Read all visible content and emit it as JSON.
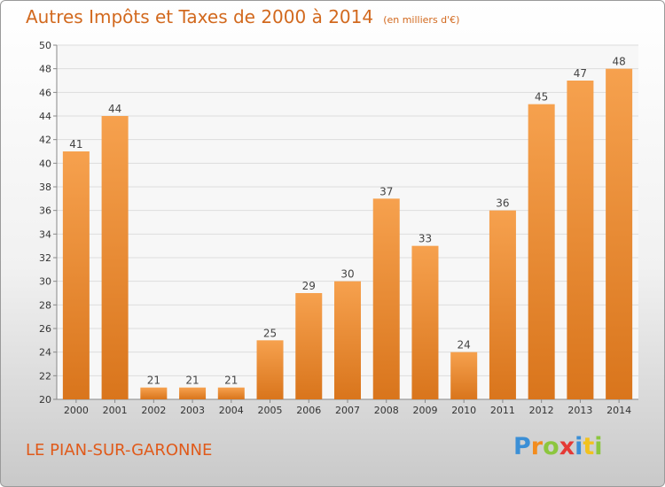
{
  "header": {
    "title": "Autres Impôts et Taxes de 2000 à 2014",
    "subtitle": "(en milliers d'€)"
  },
  "footer": {
    "commune": "LE PIAN-SUR-GARONNE"
  },
  "logo": {
    "letters": [
      {
        "char": "P",
        "color": "#3b8fd6"
      },
      {
        "char": "r",
        "color": "#f28c1e"
      },
      {
        "char": "o",
        "color": "#8cc63e"
      },
      {
        "char": "x",
        "color": "#e53935"
      },
      {
        "char": "i",
        "color": "#3b8fd6"
      },
      {
        "char": "t",
        "color": "#f2c21e"
      },
      {
        "char": "i",
        "color": "#8cc63e"
      }
    ]
  },
  "colors": {
    "bar_light": "#f6a14e",
    "bar_dark": "#d9751c",
    "title": "#d2691e"
  },
  "chart_data": {
    "type": "bar",
    "categories": [
      "2000",
      "2001",
      "2002",
      "2003",
      "2004",
      "2005",
      "2006",
      "2007",
      "2008",
      "2009",
      "2010",
      "2011",
      "2012",
      "2013",
      "2014"
    ],
    "values": [
      41,
      44,
      21,
      21,
      21,
      25,
      29,
      30,
      37,
      33,
      24,
      36,
      45,
      47,
      48
    ],
    "title": "Autres Impôts et Taxes de 2000 à 2014",
    "xlabel": "",
    "ylabel": "",
    "ylim": [
      20,
      50
    ],
    "yticks": [
      20,
      22,
      24,
      26,
      28,
      30,
      32,
      34,
      36,
      38,
      40,
      42,
      44,
      46,
      48,
      50
    ],
    "grid": true
  }
}
